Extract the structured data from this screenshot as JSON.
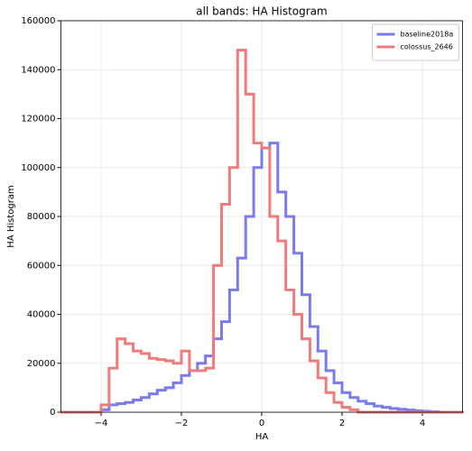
{
  "chart_data": {
    "type": "histogram",
    "title": "all bands: HA Histogram",
    "x_label": "HA",
    "y_label": "HA Histogram",
    "bins": [
      -5,
      -4.8,
      -4.6,
      -4.4,
      -4.2,
      -4,
      -3.8,
      -3.6,
      -3.4,
      -3.2,
      -3,
      -2.8,
      -2.6,
      -2.4,
      -2.2,
      -2,
      -1.8,
      -1.6,
      -1.4,
      -1.2,
      -1,
      -0.8,
      -0.6,
      -0.4,
      -0.2,
      0,
      0.2,
      0.4,
      0.6,
      0.8,
      1,
      1.2,
      1.4,
      1.6,
      1.8,
      2,
      2.2,
      2.4,
      2.6,
      2.8,
      3,
      3.2,
      3.4,
      3.6,
      3.8,
      4,
      4.2,
      4.4,
      4.6,
      4.8,
      5
    ],
    "series": [
      {
        "name": "baseline2018a",
        "color": "#7b7bf0",
        "values": [
          0,
          0,
          0,
          0,
          0,
          1000,
          3000,
          3500,
          4000,
          5000,
          6000,
          7500,
          9000,
          10000,
          12000,
          15000,
          17000,
          20000,
          23000,
          30000,
          37000,
          50000,
          63000,
          80000,
          100000,
          108000,
          110000,
          90000,
          80000,
          65000,
          48000,
          35000,
          25000,
          17000,
          12000,
          8000,
          6000,
          4500,
          3500,
          2500,
          2000,
          1500,
          1200,
          900,
          600,
          400,
          200,
          0,
          0,
          0
        ]
      },
      {
        "name": "colossus_2646",
        "color": "#f07b7b",
        "values": [
          0,
          0,
          0,
          0,
          0,
          3000,
          18000,
          30000,
          28000,
          25000,
          24000,
          22000,
          21500,
          21000,
          20000,
          25000,
          17000,
          17000,
          18000,
          60000,
          85000,
          100000,
          148000,
          130000,
          110000,
          108000,
          80000,
          70000,
          50000,
          40000,
          30000,
          21000,
          14000,
          8000,
          4000,
          2000,
          1000,
          0,
          0,
          0,
          0,
          0,
          0,
          0,
          0,
          0,
          0,
          0,
          0,
          0
        ]
      }
    ],
    "xlim": [
      -5,
      5
    ],
    "ylim": [
      0,
      160000
    ],
    "xticks": [
      {
        "value": -4,
        "label": "−4"
      },
      {
        "value": -2,
        "label": "−2"
      },
      0,
      2,
      4
    ],
    "yticks": [
      0,
      20000,
      40000,
      60000,
      80000,
      100000,
      120000,
      140000,
      160000
    ],
    "grid": true,
    "legend": "upper right"
  }
}
